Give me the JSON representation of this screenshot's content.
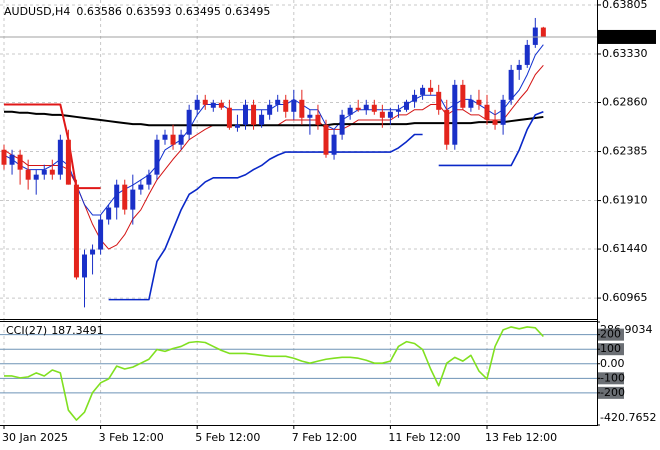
{
  "chart_data": {
    "type": "candlestick",
    "symbol": "AUDUSD,H4",
    "categories": [
      "30 Jan 2025",
      null,
      null,
      null,
      null,
      null,
      null,
      null,
      null,
      null,
      null,
      null,
      "3 Feb 12:00",
      null,
      null,
      null,
      null,
      null,
      null,
      null,
      null,
      null,
      null,
      null,
      "5 Feb 12:00",
      null,
      null,
      null,
      null,
      null,
      null,
      null,
      null,
      null,
      null,
      null,
      "7 Feb 12:00",
      null,
      null,
      null,
      null,
      null,
      null,
      null,
      null,
      null,
      null,
      null,
      "11 Feb 12:00",
      null,
      null,
      null,
      null,
      null,
      null,
      null,
      null,
      null,
      null,
      null,
      "13 Feb 12:00",
      null,
      null,
      null,
      null,
      null,
      null,
      null
    ],
    "ohlc": [
      [
        0.62402,
        0.62451,
        0.62209,
        0.62257
      ],
      [
        0.62257,
        0.62402,
        0.62161,
        0.62354
      ],
      [
        0.62354,
        0.62402,
        0.62064,
        0.62209
      ],
      [
        0.62209,
        0.62306,
        0.62016,
        0.62112
      ],
      [
        0.62112,
        0.62209,
        0.61967,
        0.62161
      ],
      [
        0.62161,
        0.62257,
        0.62112,
        0.62209
      ],
      [
        0.62209,
        0.62306,
        0.62112,
        0.62161
      ],
      [
        0.62161,
        0.62548,
        0.62112,
        0.62499
      ],
      [
        0.62499,
        0.62596,
        0.62064,
        0.62064
      ],
      [
        0.62064,
        0.62112,
        0.61145,
        0.61165
      ],
      [
        0.61165,
        0.61435,
        0.60875,
        0.61387
      ],
      [
        0.61387,
        0.61484,
        0.61194,
        0.61435
      ],
      [
        0.61435,
        0.61774,
        0.61387,
        0.61726
      ],
      [
        0.61726,
        0.61871,
        0.61677,
        0.61842
      ],
      [
        0.61842,
        0.62112,
        0.61726,
        0.62064
      ],
      [
        0.62064,
        0.62112,
        0.61774,
        0.61822
      ],
      [
        0.61822,
        0.62161,
        0.61677,
        0.62016
      ],
      [
        0.62016,
        0.62112,
        0.61967,
        0.62064
      ],
      [
        0.62064,
        0.62209,
        0.62016,
        0.62161
      ],
      [
        0.62161,
        0.62548,
        0.62112,
        0.62499
      ],
      [
        0.62499,
        0.62596,
        0.62451,
        0.62548
      ],
      [
        0.62548,
        0.62644,
        0.62402,
        0.62451
      ],
      [
        0.62451,
        0.62596,
        0.62402,
        0.62548
      ],
      [
        0.62548,
        0.62838,
        0.62499,
        0.62789
      ],
      [
        0.62789,
        0.62934,
        0.62741,
        0.62886
      ],
      [
        0.62886,
        0.62934,
        0.62789,
        0.62838
      ],
      [
        0.62809,
        0.62886,
        0.6277,
        0.62857
      ],
      [
        0.62857,
        0.62886,
        0.62789,
        0.62809
      ],
      [
        0.62809,
        0.62886,
        0.62596,
        0.62615
      ],
      [
        0.62615,
        0.62741,
        0.62577,
        0.62644
      ],
      [
        0.62644,
        0.62886,
        0.62596,
        0.62838
      ],
      [
        0.62838,
        0.62886,
        0.62596,
        0.62644
      ],
      [
        0.62644,
        0.62789,
        0.62615,
        0.62741
      ],
      [
        0.62741,
        0.62886,
        0.62693,
        0.62838
      ],
      [
        0.62838,
        0.62934,
        0.6277,
        0.62886
      ],
      [
        0.62886,
        0.62934,
        0.62712,
        0.6277
      ],
      [
        0.6277,
        0.62983,
        0.62693,
        0.62886
      ],
      [
        0.62886,
        0.62983,
        0.62644,
        0.62712
      ],
      [
        0.62712,
        0.62789,
        0.62548,
        0.62741
      ],
      [
        0.62741,
        0.62838,
        0.62596,
        0.62644
      ],
      [
        0.62644,
        0.62693,
        0.62325,
        0.62354
      ],
      [
        0.62354,
        0.62596,
        0.62306,
        0.62548
      ],
      [
        0.62548,
        0.62789,
        0.62499,
        0.62741
      ],
      [
        0.62741,
        0.62838,
        0.62693,
        0.62809
      ],
      [
        0.62809,
        0.62886,
        0.6277,
        0.62789
      ],
      [
        0.62789,
        0.62886,
        0.62741,
        0.62838
      ],
      [
        0.62838,
        0.62886,
        0.62741,
        0.6277
      ],
      [
        0.6277,
        0.62838,
        0.62615,
        0.62712
      ],
      [
        0.62712,
        0.62809,
        0.62644,
        0.6277
      ],
      [
        0.6277,
        0.62838,
        0.62712,
        0.62789
      ],
      [
        0.62789,
        0.62886,
        0.6277,
        0.62867
      ],
      [
        0.62867,
        0.62983,
        0.62809,
        0.62934
      ],
      [
        0.62934,
        0.63031,
        0.62886,
        0.63002
      ],
      [
        0.63002,
        0.63079,
        0.62934,
        0.62963
      ],
      [
        0.62963,
        0.63031,
        0.62741,
        0.62789
      ],
      [
        0.62789,
        0.62886,
        0.62402,
        0.62451
      ],
      [
        0.62451,
        0.63079,
        0.62402,
        0.63031
      ],
      [
        0.63031,
        0.63079,
        0.62789,
        0.62809
      ],
      [
        0.62809,
        0.62934,
        0.6277,
        0.62886
      ],
      [
        0.62886,
        0.62983,
        0.62789,
        0.62838
      ],
      [
        0.62838,
        0.62934,
        0.62644,
        0.62693
      ],
      [
        0.62693,
        0.62789,
        0.62596,
        0.62644
      ],
      [
        0.62644,
        0.62934,
        0.62548,
        0.62886
      ],
      [
        0.62886,
        0.63224,
        0.62838,
        0.63176
      ],
      [
        0.63176,
        0.63273,
        0.63079,
        0.63224
      ],
      [
        0.63224,
        0.63466,
        0.63195,
        0.63418
      ],
      [
        0.63418,
        0.63679,
        0.63389,
        0.63586
      ],
      [
        0.63586,
        0.63593,
        0.63495,
        0.63495
      ]
    ],
    "up_color": "#1a30c8",
    "down_color": "#e3241c",
    "overlays": [
      {
        "color": "#d41414",
        "values": [
          0.624,
          0.6235,
          0.6231,
          0.6225,
          0.6225,
          0.6225,
          0.6225,
          0.6225,
          0.6221,
          0.6206,
          0.6187,
          0.6168,
          0.6153,
          0.6144,
          0.6148,
          0.6158,
          0.6173,
          0.6182,
          0.6197,
          0.6211,
          0.6221,
          0.6231,
          0.624,
          0.625,
          0.6255,
          0.626,
          0.6264,
          0.6264,
          0.6264,
          0.6264,
          0.6264,
          0.6264,
          0.6264,
          0.6264,
          0.6264,
          0.6269,
          0.6269,
          0.6269,
          0.6269,
          0.6269,
          0.626,
          0.626,
          0.626,
          0.6264,
          0.6269,
          0.6269,
          0.6269,
          0.6269,
          0.6269,
          0.6274,
          0.6274,
          0.6279,
          0.6279,
          0.6284,
          0.6284,
          0.6274,
          0.6279,
          0.6279,
          0.6274,
          0.6274,
          0.6269,
          0.6269,
          0.6269,
          0.6279,
          0.6289,
          0.6298,
          0.6313,
          0.6322
        ]
      },
      {
        "color": "#1030d0",
        "values": [
          0.6235,
          0.6231,
          0.6225,
          0.6221,
          0.6221,
          0.6221,
          0.6225,
          0.6231,
          0.6225,
          0.6206,
          0.6187,
          0.6177,
          0.6177,
          0.6187,
          0.6197,
          0.6202,
          0.6206,
          0.6211,
          0.6216,
          0.6225,
          0.624,
          0.6245,
          0.625,
          0.626,
          0.6274,
          0.6284,
          0.6284,
          0.6284,
          0.6279,
          0.6279,
          0.6279,
          0.6279,
          0.6279,
          0.6279,
          0.6284,
          0.6284,
          0.6289,
          0.6284,
          0.6279,
          0.6279,
          0.6264,
          0.626,
          0.6269,
          0.6274,
          0.6279,
          0.6279,
          0.6279,
          0.6279,
          0.6279,
          0.6279,
          0.6284,
          0.6289,
          0.6293,
          0.6293,
          0.6293,
          0.6279,
          0.6284,
          0.6289,
          0.6289,
          0.6284,
          0.6279,
          0.6274,
          0.6279,
          0.6289,
          0.6298,
          0.6313,
          0.6332,
          0.6342
        ]
      },
      {
        "color": "#000000",
        "values": [
          0.6277,
          0.6277,
          0.6276,
          0.6276,
          0.6275,
          0.6275,
          0.6274,
          0.6274,
          0.6273,
          0.6272,
          0.6271,
          0.627,
          0.6269,
          0.6268,
          0.6267,
          0.6266,
          0.6265,
          0.6265,
          0.6264,
          0.6264,
          0.6264,
          0.6264,
          0.6264,
          0.6264,
          0.6264,
          0.6264,
          0.6264,
          0.6264,
          0.6264,
          0.6264,
          0.6264,
          0.6264,
          0.6264,
          0.6264,
          0.6264,
          0.6264,
          0.6264,
          0.6264,
          0.6264,
          0.6264,
          0.6264,
          0.6265,
          0.6265,
          0.6265,
          0.6265,
          0.6265,
          0.6265,
          0.6265,
          0.6265,
          0.6265,
          0.6265,
          0.6266,
          0.6266,
          0.6266,
          0.6266,
          0.6266,
          0.6266,
          0.6266,
          0.6266,
          0.6267,
          0.6267,
          0.6267,
          0.6267,
          0.6268,
          0.6269,
          0.627,
          0.6271,
          0.6272
        ]
      },
      {
        "color": "#0a28c8",
        "values": [
          null,
          null,
          null,
          null,
          null,
          null,
          null,
          null,
          null,
          null,
          null,
          null,
          null,
          0.6095,
          0.6095,
          0.6095,
          0.6095,
          0.6095,
          0.6095,
          0.6132,
          0.6144,
          0.6163,
          0.6182,
          0.6197,
          0.6202,
          0.6209,
          0.6213,
          0.6213,
          0.6213,
          0.6213,
          0.6216,
          0.6221,
          0.6225,
          0.6231,
          0.6235,
          0.6238,
          0.6238,
          0.6238,
          0.6238,
          0.6238,
          0.6238,
          0.6238,
          0.6238,
          0.6238,
          0.6238,
          0.6238,
          0.6238,
          0.6238,
          0.6238,
          0.6242,
          0.6248,
          0.6255,
          0.6255,
          null,
          0.6225,
          0.6225,
          0.6225,
          0.6225,
          0.6225,
          0.6225,
          0.6225,
          0.6225,
          0.6225,
          0.6225,
          0.624,
          0.626,
          0.6274,
          0.6277
        ]
      },
      {
        "color": "#e01818",
        "values": [
          0.6284,
          0.6284,
          0.6284,
          0.6284,
          0.6284,
          0.6284,
          0.6284,
          0.6284,
          0.625,
          0.6203,
          0.6203,
          0.6203,
          0.6203,
          null,
          null,
          null,
          null,
          null,
          null,
          null,
          null,
          null,
          null,
          null,
          null,
          null,
          null,
          null,
          null,
          null,
          null,
          null,
          null,
          null,
          null,
          null,
          null,
          null,
          null,
          null,
          null,
          null,
          null,
          null,
          null,
          null,
          null,
          null,
          null,
          null,
          null,
          null,
          null,
          null,
          null,
          null,
          null,
          null,
          null,
          null,
          null,
          null,
          null,
          null,
          null,
          null,
          null,
          null
        ]
      }
    ],
    "ylim": [
      0.60772,
      0.63853
    ],
    "yticks": [
      0.63805,
      {
        "value": 0.6333,
        "label": "0.63330"
      },
      {
        "value": 0.6286,
        "label": "0.62860"
      },
      0.62385,
      {
        "value": 0.6191,
        "label": "0.61910"
      },
      {
        "value": 0.6144,
        "label": "0.61440"
      },
      0.60965
    ],
    "grid": true,
    "indicator": {
      "type": "line",
      "name": "CCI(27)",
      "color": "#80e020",
      "values": [
        -84,
        -84,
        -97,
        -90,
        -63,
        -84,
        -43,
        -63,
        -319,
        -387,
        -333,
        -198,
        -131,
        -104,
        -16,
        -36,
        -23,
        4,
        31,
        98,
        85,
        105,
        119,
        146,
        152,
        146,
        119,
        92,
        71,
        71,
        71,
        65,
        58,
        51,
        51,
        51,
        38,
        18,
        4,
        18,
        31,
        38,
        44,
        44,
        38,
        24,
        4,
        4,
        18,
        119,
        152,
        139,
        98,
        -36,
        -151,
        4,
        44,
        18,
        58,
        -50,
        -104,
        119,
        233,
        253,
        240,
        253,
        247,
        187.3491
      ],
      "ylim": [
        -420.7652,
        286.9034
      ],
      "yticks": [
        286.9034,
        200,
        100,
        {
          "value": 0,
          "label": "0.00"
        },
        -100,
        -200,
        -420.7652
      ],
      "level_color": "#6e93b6"
    }
  }
}
